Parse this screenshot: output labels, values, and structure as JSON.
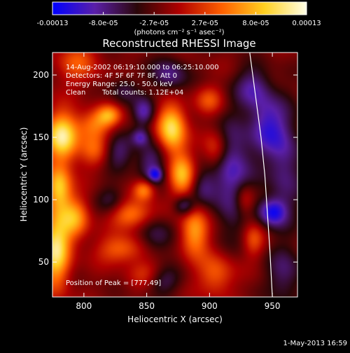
{
  "chart_data": {
    "type": "heatmap",
    "title": "Reconstructed RHESSI Image",
    "xlabel": "Heliocentric X (arcsec)",
    "ylabel": "Heliocentric Y (arcsec)",
    "xlim": [
      775,
      970
    ],
    "ylim": [
      22,
      218
    ],
    "xticks": [
      800,
      850,
      900,
      950
    ],
    "yticks": [
      50,
      100,
      150,
      200
    ],
    "colorbar": {
      "ticks": [
        "-0.00013",
        "-8.0e-05",
        "-2.7e-05",
        "2.7e-05",
        "8.0e-05",
        "0.00013"
      ],
      "range": [
        -0.00013,
        0.00013
      ],
      "units": "(photons cm⁻² s⁻¹ asec⁻²)",
      "colors": [
        "#0000ff",
        "#5a1fa8",
        "#2a0608",
        "#b00000",
        "#ff6000",
        "#ffd020",
        "#ffffe8"
      ]
    },
    "annotations": [
      "14-Aug-2002 06:19:10.000 to 06:25:10.000",
      "Detectors: 4F 5F 6F 7F 8F, Att 0",
      "Energy Range: 25.0 - 50.0 keV",
      "Clean",
      "Total counts: 1.12E+04"
    ],
    "peak_label": "Position of Peak = [777,49]",
    "peak": [
      777,
      49
    ],
    "features": [
      {
        "x": 783,
        "y": 150,
        "sx": 9,
        "sy": 14,
        "v": 0.00013
      },
      {
        "x": 780,
        "y": 110,
        "sx": 7,
        "sy": 12,
        "v": 0.0001
      },
      {
        "x": 778,
        "y": 60,
        "sx": 8,
        "sy": 22,
        "v": 0.00012
      },
      {
        "x": 793,
        "y": 85,
        "sx": 8,
        "sy": 12,
        "v": 8e-05
      },
      {
        "x": 795,
        "y": 210,
        "sx": 12,
        "sy": 12,
        "v": 5e-05
      },
      {
        "x": 808,
        "y": 160,
        "sx": 10,
        "sy": 8,
        "v": 6e-05
      },
      {
        "x": 820,
        "y": 168,
        "sx": 7,
        "sy": 6,
        "v": 7e-05
      },
      {
        "x": 848,
        "y": 108,
        "sx": 6,
        "sy": 6,
        "v": 8e-05
      },
      {
        "x": 838,
        "y": 88,
        "sx": 12,
        "sy": 8,
        "v": 7e-05
      },
      {
        "x": 830,
        "y": 60,
        "sx": 14,
        "sy": 8,
        "v": 6e-05
      },
      {
        "x": 808,
        "y": 140,
        "sx": 8,
        "sy": 10,
        "v": 5e-05
      },
      {
        "x": 870,
        "y": 157,
        "sx": 8,
        "sy": 14,
        "v": 0.00012
      },
      {
        "x": 878,
        "y": 120,
        "sx": 7,
        "sy": 12,
        "v": 9e-05
      },
      {
        "x": 888,
        "y": 75,
        "sx": 8,
        "sy": 14,
        "v": 9e-05
      },
      {
        "x": 905,
        "y": 140,
        "sx": 7,
        "sy": 12,
        "v": 6e-05
      },
      {
        "x": 900,
        "y": 180,
        "sx": 8,
        "sy": 8,
        "v": 5e-05
      },
      {
        "x": 905,
        "y": 40,
        "sx": 10,
        "sy": 12,
        "v": 6e-05
      },
      {
        "x": 928,
        "y": 100,
        "sx": 6,
        "sy": 10,
        "v": 6e-05
      },
      {
        "x": 935,
        "y": 68,
        "sx": 6,
        "sy": 10,
        "v": 5e-05
      },
      {
        "x": 850,
        "y": 40,
        "sx": 10,
        "sy": 8,
        "v": 4e-05
      },
      {
        "x": 828,
        "y": 138,
        "sx": 8,
        "sy": 10,
        "v": -5e-05
      },
      {
        "x": 848,
        "y": 170,
        "sx": 6,
        "sy": 8,
        "v": -7e-05
      },
      {
        "x": 853,
        "y": 130,
        "sx": 8,
        "sy": 12,
        "v": -6e-05
      },
      {
        "x": 822,
        "y": 100,
        "sx": 8,
        "sy": 8,
        "v": -4e-05
      },
      {
        "x": 845,
        "y": 150,
        "sx": 5,
        "sy": 5,
        "v": -6e-05
      },
      {
        "x": 857,
        "y": 120,
        "sx": 4,
        "sy": 4,
        "v": -7e-05
      },
      {
        "x": 858,
        "y": 70,
        "sx": 10,
        "sy": 10,
        "v": -5e-05
      },
      {
        "x": 868,
        "y": 200,
        "sx": 10,
        "sy": 10,
        "v": -6e-05
      },
      {
        "x": 895,
        "y": 110,
        "sx": 7,
        "sy": 10,
        "v": -4e-05
      },
      {
        "x": 918,
        "y": 120,
        "sx": 12,
        "sy": 30,
        "v": -8e-05
      },
      {
        "x": 945,
        "y": 160,
        "sx": 10,
        "sy": 16,
        "v": -7e-05
      },
      {
        "x": 950,
        "y": 90,
        "sx": 8,
        "sy": 8,
        "v": -9e-05
      },
      {
        "x": 935,
        "y": 190,
        "sx": 10,
        "sy": 12,
        "v": -6e-05
      },
      {
        "x": 880,
        "y": 95,
        "sx": 6,
        "sy": 6,
        "v": -7e-05
      },
      {
        "x": 862,
        "y": 35,
        "sx": 10,
        "sy": 8,
        "v": -5e-05
      },
      {
        "x": 832,
        "y": 188,
        "sx": 8,
        "sy": 8,
        "v": -4e-05
      },
      {
        "x": 960,
        "y": 130,
        "sx": 10,
        "sy": 30,
        "v": -6e-05
      },
      {
        "x": 960,
        "y": 40,
        "sx": 10,
        "sy": 16,
        "v": -5e-05
      }
    ],
    "limb": [
      [
        932,
        218
      ],
      [
        937,
        180
      ],
      [
        941,
        150
      ],
      [
        944,
        120
      ],
      [
        946,
        90
      ],
      [
        948,
        60
      ],
      [
        950,
        22
      ]
    ]
  },
  "footer": {
    "date": "1-May-2013 16:59"
  }
}
